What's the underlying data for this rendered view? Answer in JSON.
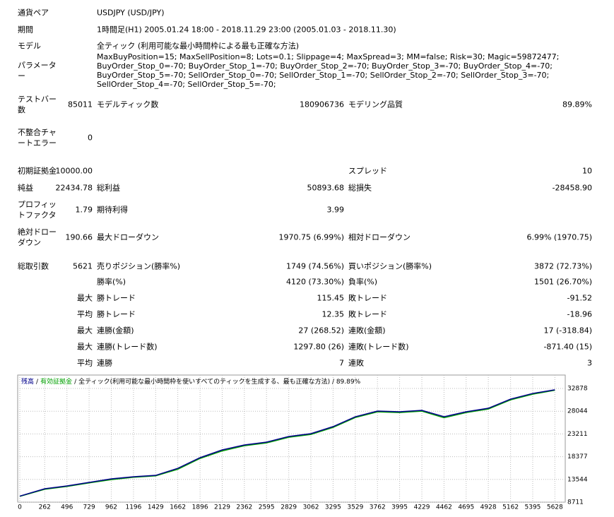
{
  "report": {
    "rows": [
      [
        "通貨ペア",
        "USDJPY (USD/JPY)"
      ],
      [
        "期間",
        "1時間足(H1) 2005.01.24 18:00 - 2018.11.29 23:00 (2005.01.03 - 2018.11.30)"
      ],
      [
        "モデル",
        "全ティック (利用可能な最小時間枠による最も正確な方法)"
      ],
      [
        "パラメーター",
        "MaxBuyPosition=15; MaxSellPosition=8; Lots=0.1; Slippage=4; MaxSpread=3; MM=false; Risk=30; Magic=59872477; BuyOrder_Stop_0=-70; BuyOrder_Stop_1=-70; BuyOrder_Stop_2=-70; BuyOrder_Stop_3=-70; BuyOrder_Stop_4=-70; BuyOrder_Stop_5=-70; SellOrder_Stop_0=-70; SellOrder_Stop_1=-70; SellOrder_Stop_2=-70; SellOrder_Stop_3=-70; SellOrder_Stop_4=-70; SellOrder_Stop_5=-70;"
      ],
      [
        "テストバー数",
        "85011",
        "モデルティック数",
        "180906736",
        "モデリング品質",
        "89.89%"
      ],
      [
        "不整合チャートエラー",
        "0",
        null,
        null,
        null,
        null
      ],
      [
        "初期証拠金",
        "10000.00",
        null,
        null,
        "スプレッド",
        "10"
      ],
      [
        "純益",
        "22434.78",
        "総利益",
        "50893.68",
        "総損失",
        "-28458.90"
      ],
      [
        "プロフィットファクタ",
        "1.79",
        "期待利得",
        "3.99",
        null,
        null
      ],
      [
        "絶対ドローダウン",
        "190.66",
        "最大ドローダウン",
        "1970.75 (6.99%)",
        "相対ドローダウン",
        "6.99% (1970.75)"
      ],
      [
        "総取引数",
        "5621",
        "売りポジション(勝率%)",
        "1749 (74.56%)",
        "買いポジション(勝率%)",
        "3872 (72.73%)"
      ],
      [
        null,
        null,
        "勝率(%)",
        "4120 (73.30%)",
        "負率(%)",
        "1501 (26.70%)"
      ],
      [
        null,
        "最大",
        "勝トレード",
        "115.45",
        "敗トレード",
        "-91.52"
      ],
      [
        null,
        "平均",
        "勝トレード",
        "12.35",
        "敗トレード",
        "-18.96"
      ],
      [
        null,
        "最大",
        "連勝(金額)",
        "27 (268.52)",
        "連敗(金額)",
        "17 (-318.84)"
      ],
      [
        null,
        "最大",
        "連勝(トレード数)",
        "1297.80 (26)",
        "連敗(トレード数)",
        "-871.40 (15)"
      ],
      [
        null,
        "平均",
        "連勝",
        "7",
        "連敗",
        "3"
      ]
    ]
  },
  "chart_data": {
    "type": "line",
    "title": "全ティック(利用可能な最小時間枠を使いすべてのティックを生成する、最も正確な方法) / 89.89%",
    "legend_separator": "/",
    "x": [
      0,
      262,
      496,
      729,
      962,
      1196,
      1429,
      1662,
      1896,
      2129,
      2362,
      2595,
      2829,
      3062,
      3295,
      3529,
      3762,
      3995,
      4229,
      4462,
      4695,
      4928,
      5162,
      5395,
      5628
    ],
    "series": [
      {
        "name": "有効証拠金",
        "color": "#00a000",
        "values": [
          9950,
          11450,
          12050,
          12800,
          13500,
          14000,
          14300,
          15700,
          18000,
          19600,
          20700,
          21300,
          22500,
          23100,
          24600,
          26700,
          27900,
          27750,
          28050,
          26650,
          27750,
          28500,
          30450,
          31650,
          32500
        ]
      },
      {
        "name": "残高",
        "color": "#00008b",
        "values": [
          10000,
          11560,
          12160,
          12910,
          13660,
          14110,
          14410,
          15910,
          18170,
          19820,
          20870,
          21470,
          22670,
          23270,
          24770,
          26870,
          28070,
          27920,
          28220,
          26870,
          27920,
          28670,
          30620,
          31820,
          32600
        ]
      }
    ],
    "xlim": [
      0,
      5700
    ],
    "ylim": [
      8711,
      35430
    ],
    "xticks": [
      0,
      262,
      496,
      729,
      962,
      1196,
      1429,
      1662,
      1896,
      2129,
      2362,
      2595,
      2829,
      3062,
      3295,
      3529,
      3762,
      3995,
      4229,
      4462,
      4695,
      4928,
      5162,
      5395,
      5628
    ],
    "yticks": [
      8711,
      13544,
      18377,
      23211,
      28044,
      32878
    ],
    "grid": true
  }
}
